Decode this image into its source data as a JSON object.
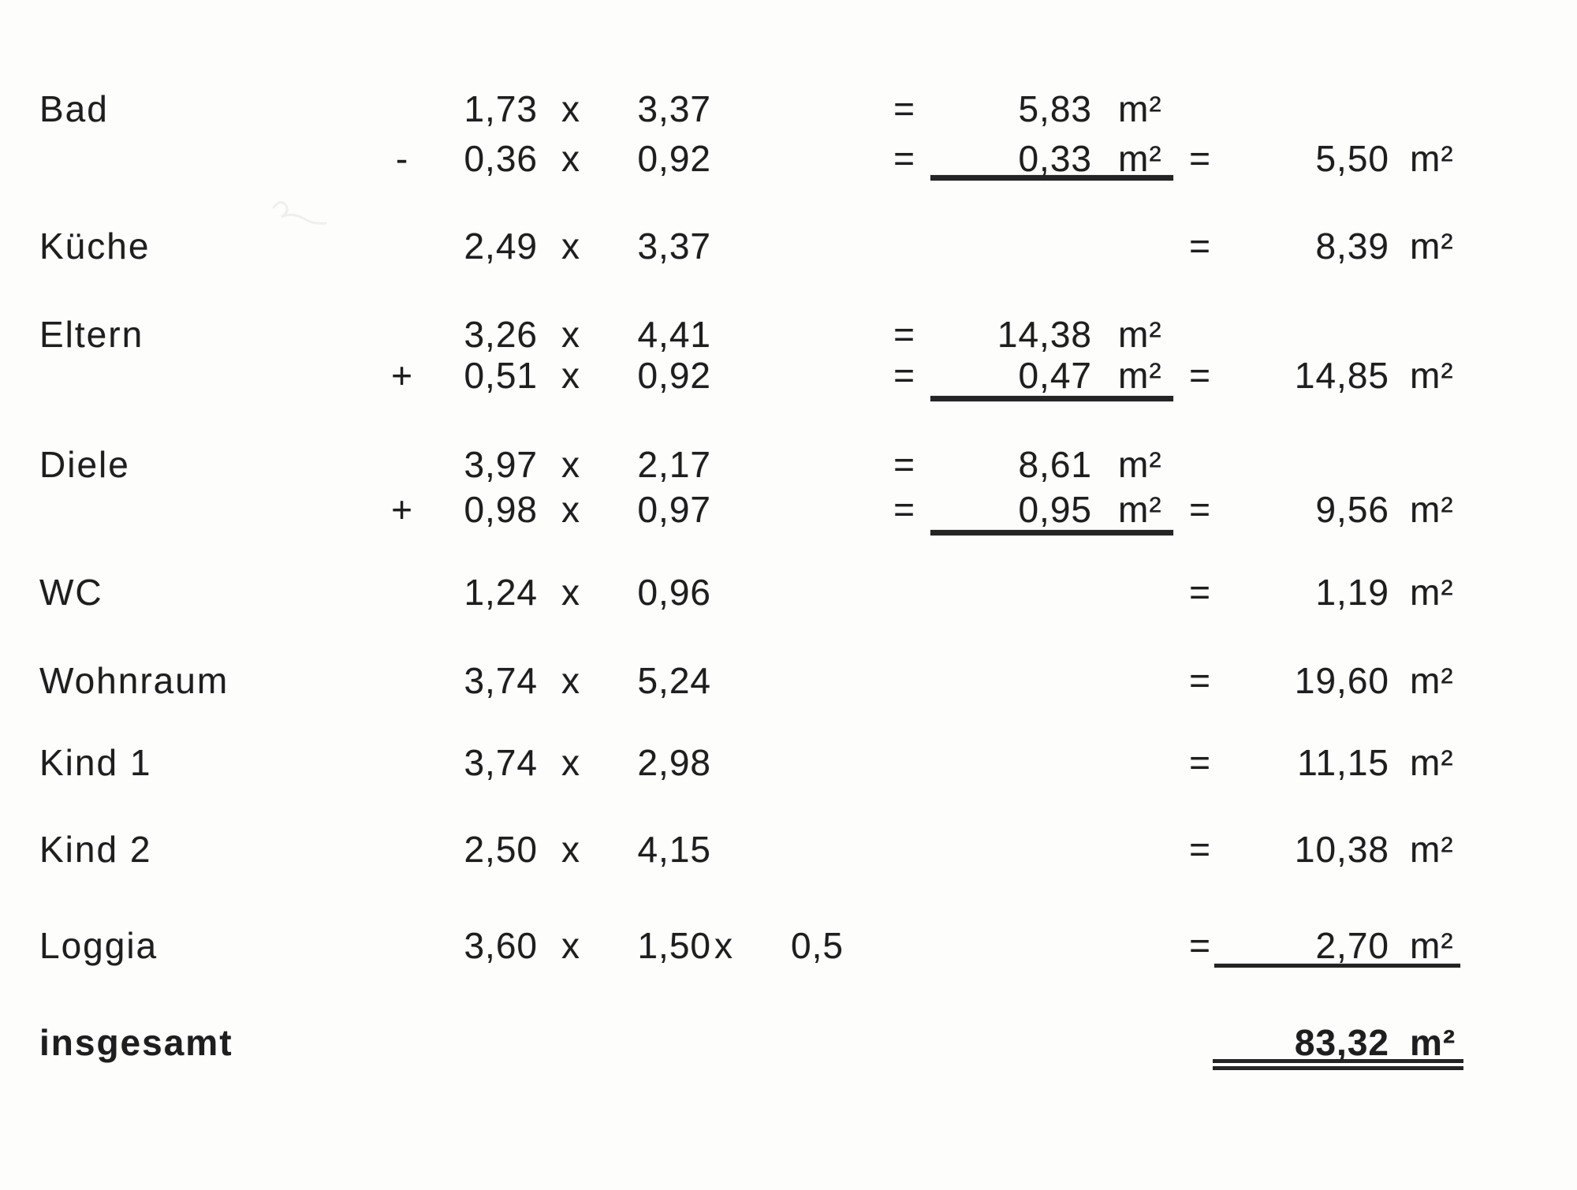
{
  "document": {
    "type_hint": "Wohnflächenberechnung (floor area calculation, scanned sheet)",
    "unit": "m²",
    "multiply_sign": "x",
    "equals_sign": "=",
    "rows": [
      {
        "label": "Bad",
        "lines": [
          {
            "v1": "1,73",
            "x1": "x",
            "v2": "3,37",
            "eq1": "=",
            "mid": "5,83",
            "mid_unit": "m²"
          },
          {
            "sign": "-",
            "v1": "0,36",
            "x1": "x",
            "v2": "0,92",
            "eq1": "=",
            "mid": "0,33",
            "mid_unit": "m²",
            "mid_underline": true,
            "eq2": "=",
            "result": "5,50",
            "result_unit": "m²"
          }
        ]
      },
      {
        "label": "Küche",
        "lines": [
          {
            "v1": "2,49",
            "x1": "x",
            "v2": "3,37",
            "eq2": "=",
            "result": "8,39",
            "result_unit": "m²"
          }
        ]
      },
      {
        "label": "Eltern",
        "lines": [
          {
            "v1": "3,26",
            "x1": "x",
            "v2": "4,41",
            "eq1": "=",
            "mid": "14,38",
            "mid_unit": "m²"
          },
          {
            "sign": "+",
            "v1": "0,51",
            "x1": "x",
            "v2": "0,92",
            "eq1": "=",
            "mid": "0,47",
            "mid_unit": "m²",
            "mid_underline": true,
            "eq2": "=",
            "result": "14,85",
            "result_unit": "m²"
          }
        ]
      },
      {
        "label": "Diele",
        "lines": [
          {
            "v1": "3,97",
            "x1": "x",
            "v2": "2,17",
            "eq1": "=",
            "mid": "8,61",
            "mid_unit": "m²"
          },
          {
            "sign": "+",
            "v1": "0,98",
            "x1": "x",
            "v2": "0,97",
            "eq1": "=",
            "mid": "0,95",
            "mid_unit": "m²",
            "mid_underline": true,
            "eq2": "=",
            "result": "9,56",
            "result_unit": "m²"
          }
        ]
      },
      {
        "label": "WC",
        "lines": [
          {
            "v1": "1,24",
            "x1": "x",
            "v2": "0,96",
            "eq2": "=",
            "result": "1,19",
            "result_unit": "m²"
          }
        ]
      },
      {
        "label": "Wohnraum",
        "lines": [
          {
            "v1": "3,74",
            "x1": "x",
            "v2": "5,24",
            "eq2": "=",
            "result": "19,60",
            "result_unit": "m²"
          }
        ]
      },
      {
        "label": "Kind 1",
        "lines": [
          {
            "v1": "3,74",
            "x1": "x",
            "v2": "2,98",
            "eq2": "=",
            "result": "11,15",
            "result_unit": "m²"
          }
        ]
      },
      {
        "label": "Kind 2",
        "lines": [
          {
            "v1": "2,50",
            "x1": "x",
            "v2": "4,15",
            "eq2": "=",
            "result": "10,38",
            "result_unit": "m²"
          }
        ]
      },
      {
        "label": "Loggia",
        "lines": [
          {
            "v1": "3,60",
            "x1": "x",
            "v2": "1,50",
            "x2": "x",
            "v3": "0,5",
            "eq2": "=",
            "result": "2,70",
            "result_unit": "m²",
            "result_underline": "single"
          }
        ]
      }
    ],
    "total": {
      "label": "insgesamt",
      "value": "83,32",
      "unit": "m²",
      "underline": "double"
    }
  }
}
